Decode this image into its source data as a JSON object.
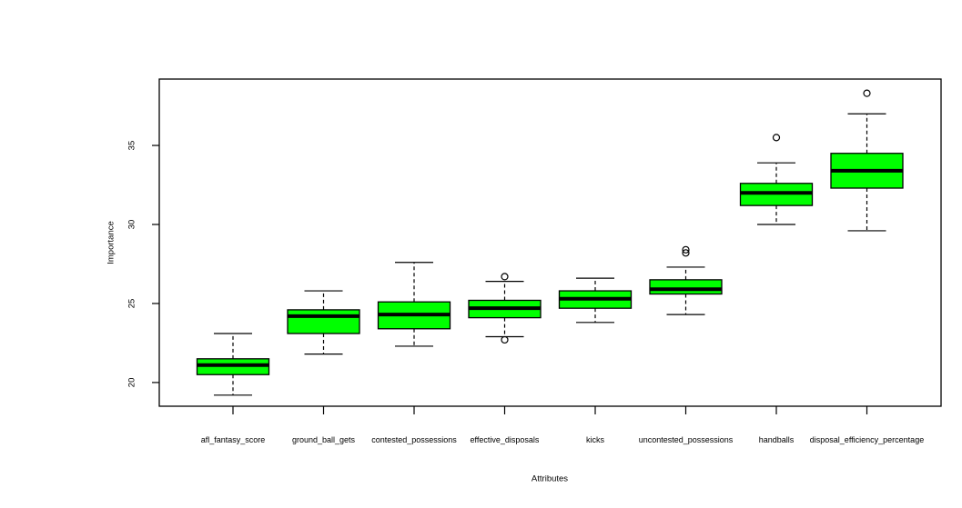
{
  "figure": {
    "background_color": "#ffffff",
    "axis_color": "#000000",
    "text_color": "#000000"
  },
  "chart_data": {
    "type": "boxplot",
    "title": "",
    "xlabel": "Attributes",
    "ylabel": "Importance",
    "ylim": [
      18.5,
      39.2
    ],
    "yticks": [
      20,
      25,
      30,
      35
    ],
    "grid": false,
    "legend": null,
    "box_fill_color": "#00ff00",
    "box_border_color": "#000000",
    "median_color": "#000000",
    "whisker_style": "dashed",
    "outlier_marker": "open-circle",
    "categories": [
      "afl_fantasy_score",
      "ground_ball_gets",
      "contested_possessions",
      "effective_disposals",
      "kicks",
      "uncontested_possessions",
      "handballs",
      "disposal_efficiency_percentage"
    ],
    "series": [
      {
        "category": "afl_fantasy_score",
        "whisker_low": 19.2,
        "q1": 20.5,
        "median": 21.1,
        "q3": 21.5,
        "whisker_high": 23.1,
        "outliers": []
      },
      {
        "category": "ground_ball_gets",
        "whisker_low": 21.8,
        "q1": 23.1,
        "median": 24.2,
        "q3": 24.6,
        "whisker_high": 25.8,
        "outliers": []
      },
      {
        "category": "contested_possessions",
        "whisker_low": 22.3,
        "q1": 23.4,
        "median": 24.3,
        "q3": 25.1,
        "whisker_high": 27.6,
        "outliers": []
      },
      {
        "category": "effective_disposals",
        "whisker_low": 22.9,
        "q1": 24.1,
        "median": 24.7,
        "q3": 25.2,
        "whisker_high": 26.4,
        "outliers": [
          26.7,
          22.7
        ]
      },
      {
        "category": "kicks",
        "whisker_low": 23.8,
        "q1": 24.7,
        "median": 25.3,
        "q3": 25.8,
        "whisker_high": 26.6,
        "outliers": []
      },
      {
        "category": "uncontested_possessions",
        "whisker_low": 24.3,
        "q1": 25.6,
        "median": 25.9,
        "q3": 26.5,
        "whisker_high": 27.3,
        "outliers": [
          28.2,
          28.4
        ]
      },
      {
        "category": "handballs",
        "whisker_low": 30.0,
        "q1": 31.2,
        "median": 32.0,
        "q3": 32.6,
        "whisker_high": 33.9,
        "outliers": [
          35.5
        ]
      },
      {
        "category": "disposal_efficiency_percentage",
        "whisker_low": 29.6,
        "q1": 32.3,
        "median": 33.4,
        "q3": 34.5,
        "whisker_high": 37.0,
        "outliers": [
          38.3
        ]
      }
    ]
  }
}
